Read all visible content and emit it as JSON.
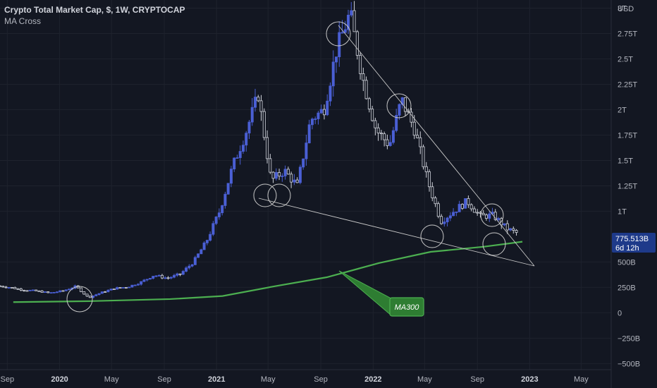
{
  "header": {
    "title": "Crypto Total Market Cap, $, 1W, CRYPTOCAP",
    "indicator": "MA Cross"
  },
  "colors": {
    "background": "#131722",
    "grid": "#1e222d",
    "candle_up": "#4a5fd4",
    "candle_down": "#d1d4dc",
    "ma_line": "#4caf50",
    "price_badge": "#1e3a8a",
    "annotation": "#c8c8c8"
  },
  "chart_data": {
    "type": "candlestick",
    "y_axis": {
      "currency": "USD",
      "ticks": [
        "3T",
        "2.75T",
        "2.5T",
        "2.25T",
        "2T",
        "1.75T",
        "1.5T",
        "1.25T",
        "1T",
        "500B",
        "250B",
        "0",
        "−250B",
        "−500B"
      ],
      "tick_values": [
        3000,
        2750,
        2500,
        2250,
        2000,
        1750,
        1500,
        1250,
        1000,
        500,
        250,
        0,
        -250,
        -500
      ],
      "range": [
        -560,
        3080
      ]
    },
    "x_axis": {
      "labels": [
        "Sep",
        "2020",
        "May",
        "Sep",
        "2021",
        "May",
        "Sep",
        "2022",
        "May",
        "Sep",
        "2023",
        "May"
      ],
      "label_dates": [
        "2019-09",
        "2020-01",
        "2020-05",
        "2020-09",
        "2021-01",
        "2021-05",
        "2021-09",
        "2022-01",
        "2022-05",
        "2022-09",
        "2023-01",
        "2023-05"
      ],
      "bold_labels": [
        "2020",
        "2021",
        "2022",
        "2023"
      ],
      "range": [
        "2019-08-15",
        "2023-07-10"
      ]
    },
    "last_price": "775.513B",
    "countdown": "6d 12h",
    "price_series": [
      [
        "2019-08",
        265
      ],
      [
        "2019-09",
        250
      ],
      [
        "2019-10",
        225
      ],
      [
        "2019-11",
        215
      ],
      [
        "2019-12",
        195
      ],
      [
        "2020-01",
        215
      ],
      [
        "2020-02",
        260
      ],
      [
        "2020-03",
        150
      ],
      [
        "2020-04",
        200
      ],
      [
        "2020-05",
        240
      ],
      [
        "2020-06",
        255
      ],
      [
        "2020-07",
        300
      ],
      [
        "2020-08",
        370
      ],
      [
        "2020-09",
        340
      ],
      [
        "2020-10",
        380
      ],
      [
        "2020-11",
        500
      ],
      [
        "2020-12",
        700
      ],
      [
        "2021-01",
        1000
      ],
      [
        "2021-02",
        1450
      ],
      [
        "2021-03",
        1750
      ],
      [
        "2021-04",
        2150
      ],
      [
        "2021-05",
        1300
      ],
      [
        "2021-06",
        1400
      ],
      [
        "2021-07",
        1250
      ],
      [
        "2021-08",
        1900
      ],
      [
        "2021-09",
        2000
      ],
      [
        "2021-10",
        2600
      ],
      [
        "2021-11",
        2950
      ],
      [
        "2021-12",
        2300
      ],
      [
        "2022-01",
        1800
      ],
      [
        "2022-02",
        1650
      ],
      [
        "2022-03",
        2100
      ],
      [
        "2022-04",
        1800
      ],
      [
        "2022-05",
        1300
      ],
      [
        "2022-06",
        900
      ],
      [
        "2022-07",
        1000
      ],
      [
        "2022-08",
        1100
      ],
      [
        "2022-09",
        950
      ],
      [
        "2022-10",
        960
      ],
      [
        "2022-11",
        830
      ],
      [
        "2022-12",
        775
      ]
    ],
    "ma_series": {
      "name": "MA300",
      "points": [
        [
          "2019-09",
          105
        ],
        [
          "2020-03",
          115
        ],
        [
          "2020-09",
          135
        ],
        [
          "2021-01",
          165
        ],
        [
          "2021-05",
          260
        ],
        [
          "2021-09",
          350
        ],
        [
          "2022-01",
          490
        ],
        [
          "2022-05",
          600
        ],
        [
          "2022-09",
          650
        ],
        [
          "2022-12",
          700
        ]
      ]
    },
    "annotation_label": "MA300"
  }
}
